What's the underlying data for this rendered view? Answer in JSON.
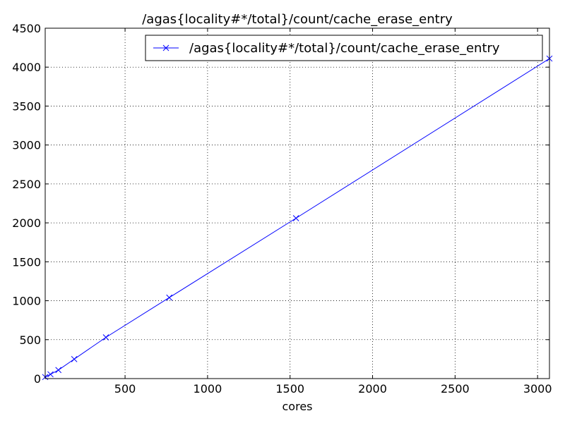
{
  "chart_data": {
    "type": "line",
    "title": "/agas{locality#*/total}/count/cache_erase_entry",
    "xlabel": "cores",
    "ylabel": "",
    "xlim": [
      16,
      3072
    ],
    "ylim": [
      0,
      4500
    ],
    "x_ticks": [
      {
        "value": 500,
        "label": "500"
      },
      {
        "value": 1000,
        "label": "1000"
      },
      {
        "value": 1500,
        "label": "1500"
      },
      {
        "value": 2000,
        "label": "2000"
      },
      {
        "value": 2500,
        "label": "2500"
      },
      {
        "value": 3000,
        "label": "3000"
      }
    ],
    "y_ticks": [
      {
        "value": 0,
        "label": "0"
      },
      {
        "value": 500,
        "label": "500"
      },
      {
        "value": 1000,
        "label": "1000"
      },
      {
        "value": 1500,
        "label": "1500"
      },
      {
        "value": 2000,
        "label": "2000"
      },
      {
        "value": 2500,
        "label": "2500"
      },
      {
        "value": 3000,
        "label": "3000"
      },
      {
        "value": 3500,
        "label": "3500"
      },
      {
        "value": 4000,
        "label": "4000"
      },
      {
        "value": 4500,
        "label": "4500"
      }
    ],
    "grid": true,
    "legend_position": "top-right",
    "series": [
      {
        "name": "/agas{locality#*/total}/count/cache_erase_entry",
        "color": "#0000ff",
        "marker": "x",
        "x": [
          16,
          48,
          96,
          192,
          384,
          768,
          1536,
          3072
        ],
        "y": [
          20,
          55,
          110,
          250,
          530,
          1040,
          2060,
          4110
        ]
      }
    ]
  }
}
